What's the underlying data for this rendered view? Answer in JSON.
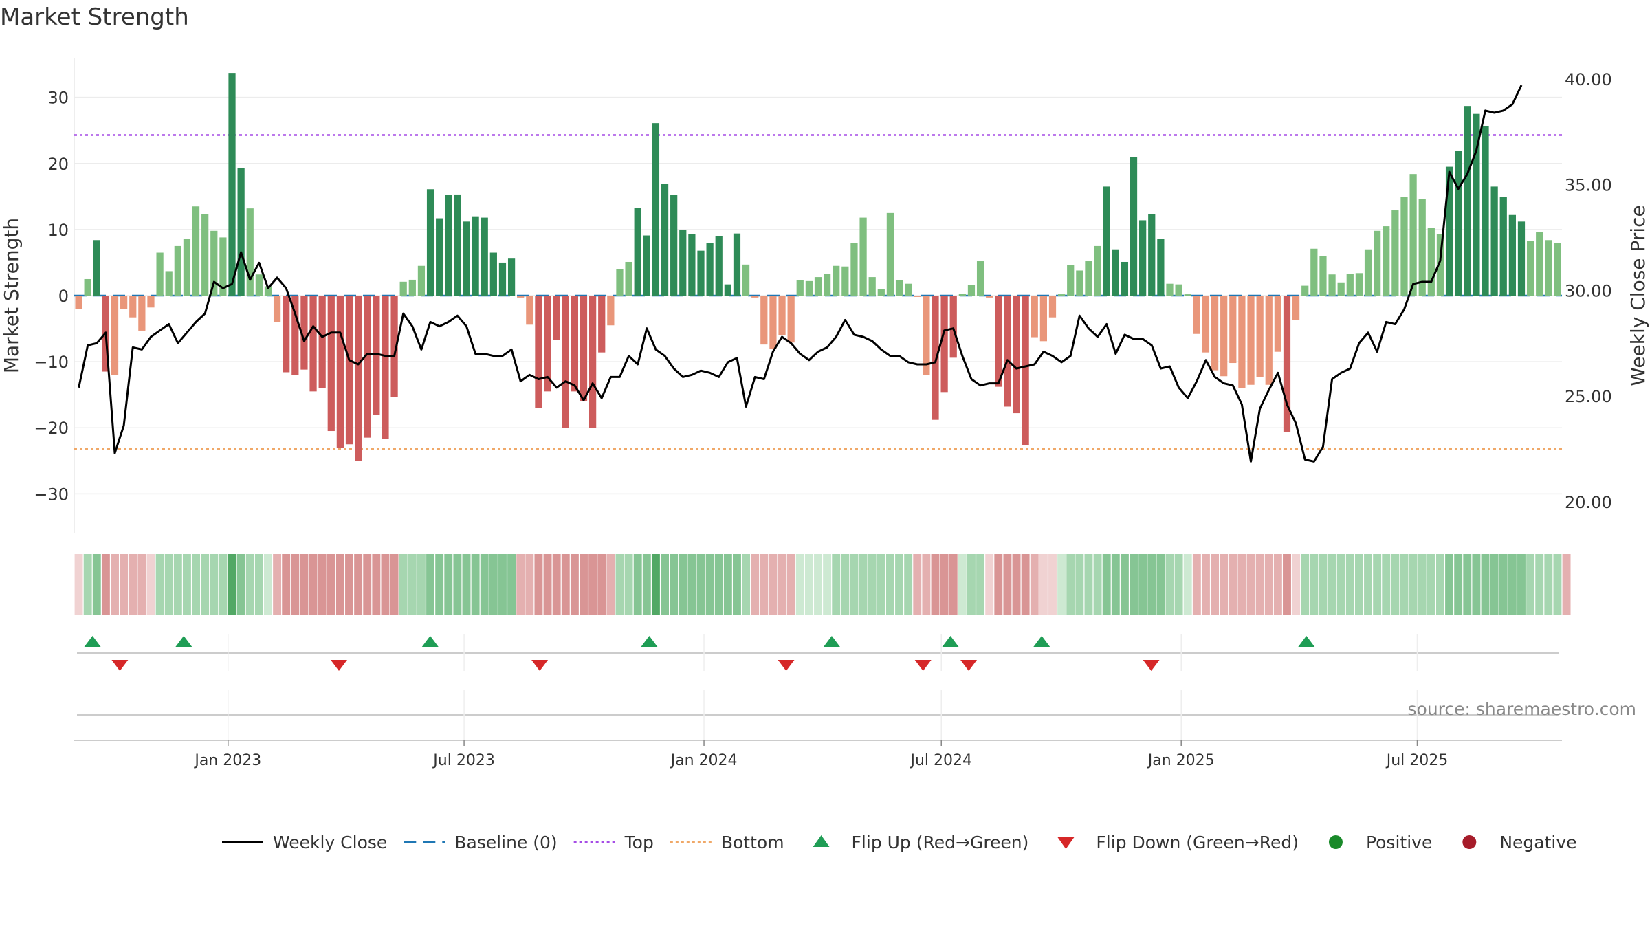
{
  "chart_data": {
    "type": "bar",
    "title": "Market Strength",
    "ylabel_left": "Market Strength",
    "ylabel_right": "Weekly Close Price",
    "ylim_left": [
      -36,
      36
    ],
    "ylim_right": [
      18.5,
      41
    ],
    "y_ticks_left": [
      30,
      20,
      10,
      0,
      -10,
      -20,
      -30
    ],
    "y_tick_labels_left": [
      "30",
      "20",
      "10",
      "0",
      "−10",
      "−20",
      "−30"
    ],
    "y_ticks_right": [
      40,
      35,
      30,
      25,
      20
    ],
    "y_tick_labels_right": [
      "40.00",
      "35.00",
      "30.00",
      "25.00",
      "20.00"
    ],
    "x_start": "2022-09-05",
    "x_end": "2025-10-20",
    "x_ticks": [
      {
        "date": "2023-01-01",
        "label": "Jan 2023"
      },
      {
        "date": "2023-07-01",
        "label": "Jul 2023"
      },
      {
        "date": "2024-01-01",
        "label": "Jan 2024"
      },
      {
        "date": "2024-07-01",
        "label": "Jul 2024"
      },
      {
        "date": "2025-01-01",
        "label": "Jan 2025"
      },
      {
        "date": "2025-07-01",
        "label": "Jul 2025"
      }
    ],
    "top_level": 24.3,
    "bottom_level": -23.2,
    "baseline": 0,
    "strength_values": [
      -2,
      2.5,
      8.4,
      -11.5,
      -12,
      -2,
      -3.3,
      -5.3,
      -1.8,
      6.5,
      3.7,
      7.5,
      8.6,
      13.5,
      12.3,
      9.8,
      8.8,
      33.7,
      19.3,
      13.2,
      3.2,
      1.4,
      -4,
      -11.6,
      -12,
      -11.2,
      -14.5,
      -14,
      -20.5,
      -23,
      -22.5,
      -25,
      -21.5,
      -18,
      -21.7,
      -15.3,
      2.1,
      2.4,
      4.5,
      16.1,
      11.7,
      15.2,
      15.3,
      11.2,
      12,
      11.8,
      6.5,
      5,
      5.6,
      -0.3,
      -4.4,
      -17,
      -14.5,
      -6.7,
      -20,
      -14.5,
      -16,
      -20,
      -8.6,
      -4.5,
      4,
      5.1,
      13.3,
      9.1,
      26.1,
      16.9,
      15.2,
      9.9,
      9.3,
      6.8,
      8,
      9,
      1.7,
      9.4,
      4.7,
      -0.3,
      -7.4,
      -8.1,
      -6,
      -7.1,
      2.3,
      2.2,
      2.8,
      3.3,
      4.5,
      4.4,
      8,
      11.8,
      2.8,
      1,
      12.5,
      2.3,
      1.8,
      -0.2,
      -12,
      -18.8,
      -14.6,
      -9.4,
      0.3,
      1.6,
      5.2,
      -0.3,
      -13.8,
      -16.8,
      -17.8,
      -22.6,
      -6.3,
      -6.9,
      -3.3,
      0.2,
      4.6,
      3.8,
      5.2,
      7.5,
      16.5,
      7,
      5.1,
      21,
      11.4,
      12.3,
      8.6,
      1.8,
      1.7,
      0.2,
      -5.8,
      -8.6,
      -11.3,
      -12.2,
      -10.2,
      -14,
      -13.5,
      -12.3,
      -13.5,
      -8.5,
      -20.6,
      -3.7,
      1.5,
      7.1,
      6,
      3.2,
      2,
      3.3,
      3.4,
      7,
      9.8,
      10.5,
      12.9,
      14.9,
      18.4,
      14.6,
      10.3,
      9.3,
      19.5,
      21.9,
      28.7,
      27.5,
      25.6,
      16.5,
      14.9,
      12.2,
      11.2,
      8.3,
      9.6,
      8.4,
      8
    ],
    "close_values": [
      25.4,
      27.4,
      27.5,
      28,
      22.3,
      23.6,
      27.3,
      27.2,
      27.8,
      28.1,
      28.4,
      27.5,
      28,
      28.5,
      28.9,
      30.4,
      30.1,
      30.3,
      31.8,
      30.5,
      31.3,
      30.1,
      30.6,
      30.1,
      28.9,
      27.6,
      28.3,
      27.8,
      28,
      28,
      26.7,
      26.5,
      27,
      27,
      26.9,
      26.9,
      28.9,
      28.3,
      27.2,
      28.5,
      28.3,
      28.5,
      28.8,
      28.3,
      27,
      27,
      26.9,
      26.9,
      27.2,
      25.7,
      26,
      25.8,
      25.9,
      25.4,
      25.7,
      25.5,
      24.8,
      25.6,
      24.9,
      25.9,
      25.9,
      26.9,
      26.5,
      28.2,
      27.2,
      26.9,
      26.3,
      25.9,
      26,
      26.2,
      26.1,
      25.9,
      26.6,
      26.8,
      24.5,
      25.9,
      25.8,
      27.1,
      27.8,
      27.5,
      27,
      26.7,
      27.1,
      27.3,
      27.8,
      28.6,
      27.9,
      27.8,
      27.6,
      27.2,
      26.9,
      26.9,
      26.6,
      26.5,
      26.5,
      26.6,
      28.1,
      28.2,
      26.9,
      25.8,
      25.5,
      25.6,
      25.6,
      26.7,
      26.3,
      26.4,
      26.5,
      27.1,
      26.9,
      26.6,
      26.9,
      28.8,
      28.2,
      27.8,
      28.4,
      27,
      27.9,
      27.7,
      27.7,
      27.4,
      26.3,
      26.4,
      25.4,
      24.9,
      25.7,
      26.7,
      25.9,
      25.6,
      25.5,
      24.6,
      21.9,
      24.4,
      25.3,
      26.1,
      24.6,
      23.7,
      22,
      21.9,
      22.6,
      25.8,
      26.1,
      26.3,
      27.5,
      28,
      27.1,
      28.5,
      28.4,
      29.1,
      30.3,
      30.4,
      30.4,
      31.4,
      35.6,
      34.8,
      35.5,
      36.6,
      38.5,
      38.4,
      38.5,
      38.8,
      39.7
    ],
    "heat_levels": [
      1,
      2,
      3,
      3,
      2,
      2,
      2,
      2,
      1,
      2,
      2,
      2,
      2,
      2,
      2,
      2,
      2,
      4,
      3,
      2,
      2,
      1,
      2,
      3,
      3,
      3,
      3,
      3,
      3,
      3,
      3,
      3,
      3,
      3,
      3,
      3,
      2,
      2,
      2,
      3,
      3,
      3,
      3,
      3,
      3,
      3,
      3,
      3,
      3,
      2,
      2,
      3,
      3,
      3,
      3,
      3,
      3,
      3,
      3,
      2,
      2,
      2,
      3,
      3,
      4,
      3,
      3,
      3,
      3,
      3,
      3,
      3,
      3,
      3,
      2,
      2,
      2,
      2,
      2,
      2,
      1,
      1,
      1,
      1,
      2,
      2,
      2,
      2,
      2,
      2,
      2,
      2,
      2,
      2,
      2,
      3,
      3,
      3,
      1,
      2,
      2,
      1,
      3,
      3,
      3,
      3,
      2,
      1,
      1,
      1,
      2,
      2,
      2,
      2,
      3,
      3,
      3,
      3,
      3,
      3,
      3,
      2,
      2,
      1,
      2,
      2,
      2,
      2,
      2,
      2,
      2,
      2,
      2,
      2,
      3,
      1,
      2,
      2,
      2,
      2,
      2,
      2,
      2,
      2,
      2,
      2,
      2,
      2,
      2,
      2,
      2,
      2,
      3,
      3,
      3,
      3,
      3,
      3,
      3,
      3,
      3,
      2,
      2,
      2,
      2,
      2
    ],
    "flip_up_dates": [
      "2022-09-19",
      "2022-11-28",
      "2023-06-05",
      "2023-11-20",
      "2024-04-08",
      "2024-07-08",
      "2024-09-16",
      "2025-04-07"
    ],
    "flip_down_dates": [
      "2022-10-10",
      "2023-03-27",
      "2023-08-28",
      "2024-03-04",
      "2024-06-17",
      "2024-07-22",
      "2024-12-09"
    ],
    "legend": [
      {
        "label": "Weekly Close",
        "kind": "line",
        "color": "#000000"
      },
      {
        "label": "Baseline (0)",
        "kind": "dash",
        "color": "#1f77b4"
      },
      {
        "label": "Top",
        "kind": "dot",
        "color": "#a64de6"
      },
      {
        "label": "Bottom",
        "kind": "dot",
        "color": "#f0a868"
      },
      {
        "label": "Flip Up (Red→Green)",
        "kind": "tri-up",
        "color": "#1f9d55"
      },
      {
        "label": "Flip Down (Green→Red)",
        "kind": "tri-down",
        "color": "#d62728"
      },
      {
        "label": "Positive",
        "kind": "circle",
        "color": "#1a8a2a"
      },
      {
        "label": "Negative",
        "kind": "circle",
        "color": "#a61c2a"
      }
    ],
    "source": "source: sharemaestro.com"
  },
  "colors": {
    "pos_strong": "#2e8b57",
    "pos_light": "#7fbf7f",
    "neg_strong": "#cd5c5c",
    "neg_light": "#e9967a",
    "heat_green": [
      "#cde9d2",
      "#a6d6b0",
      "#86c594",
      "#52a865"
    ],
    "heat_red": [
      "#f0d2d2",
      "#e4b0b0",
      "#d99595",
      "#cc7a7a"
    ]
  }
}
